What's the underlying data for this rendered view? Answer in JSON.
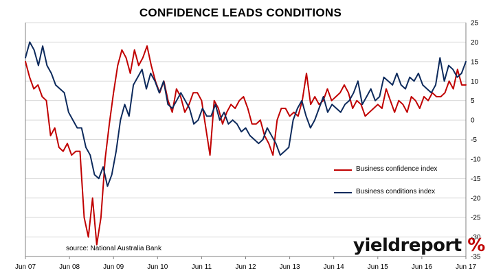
{
  "title": "CONFIDENCE LEADS CONDITIONS",
  "source": "source: National Australia Bank",
  "brand": {
    "main": "yieldreport",
    "accent": "%"
  },
  "colors": {
    "confidence": "#c00000",
    "conditions": "#0d2a5c",
    "grid": "#d9d9d9",
    "axis": "#808080"
  },
  "chart_data": {
    "type": "line",
    "x_tick_labels": [
      "Jun 07",
      "Jun 08",
      "Jun 09",
      "Jun 10",
      "Jun 11",
      "Jun 12",
      "Jun 13",
      "Jun 14",
      "Jun 15",
      "Jun 16",
      "Jun 17"
    ],
    "y_ticks": [
      25,
      20,
      15,
      10,
      5,
      0,
      -5,
      -10,
      -15,
      -20,
      -25,
      -30,
      -35
    ],
    "ylim": [
      -35,
      25
    ],
    "grid": true,
    "legend_position": "right",
    "series": [
      {
        "name": "Business confidence index",
        "color": "#c00000",
        "values": [
          15,
          11,
          8,
          9,
          6,
          5,
          -4,
          -2,
          -7,
          -8,
          -6,
          -9,
          -8,
          -8,
          -25,
          -30,
          -20,
          -32,
          -25,
          -10,
          -1,
          7,
          14,
          18,
          16,
          12,
          18,
          14,
          16,
          19,
          14,
          10,
          7,
          10,
          5,
          2,
          8,
          6,
          2,
          4,
          7,
          7,
          5,
          -2,
          -9,
          5,
          3,
          -1,
          2,
          4,
          3,
          5,
          6,
          3,
          -1,
          -1,
          0,
          -4,
          -6,
          -9,
          0,
          3,
          3,
          1,
          2,
          1,
          5,
          12,
          4,
          6,
          4,
          5,
          8,
          5,
          6,
          7,
          9,
          7,
          3,
          5,
          4,
          1,
          2,
          3,
          4,
          3,
          8,
          5,
          2,
          5,
          4,
          2,
          6,
          5,
          3,
          6,
          5,
          7,
          6,
          6,
          7,
          10,
          8,
          13,
          9,
          9
        ]
      },
      {
        "name": "Business conditions index",
        "color": "#0d2a5c",
        "values": [
          16,
          20,
          18,
          14,
          19,
          14,
          12,
          9,
          8,
          7,
          2,
          0,
          -2,
          -2,
          -7,
          -9,
          -14,
          -15,
          -12,
          -17,
          -14,
          -8,
          0,
          4,
          1,
          9,
          11,
          13,
          8,
          12,
          10,
          7,
          10,
          4,
          3,
          5,
          7,
          5,
          3,
          -1,
          0,
          3,
          1,
          1,
          4,
          0,
          2,
          -1,
          0,
          -1,
          -3,
          -2,
          -4,
          -5,
          -6,
          -5,
          -2,
          -4,
          -6,
          -9,
          -8,
          -7,
          0,
          3,
          5,
          1,
          -2,
          0,
          3,
          6,
          2,
          4,
          3,
          2,
          4,
          5,
          7,
          10,
          4,
          6,
          8,
          5,
          6,
          11,
          10,
          9,
          12,
          9,
          8,
          11,
          10,
          12,
          9,
          8,
          7,
          9,
          16,
          10,
          14,
          13,
          11,
          12,
          15
        ]
      }
    ]
  }
}
